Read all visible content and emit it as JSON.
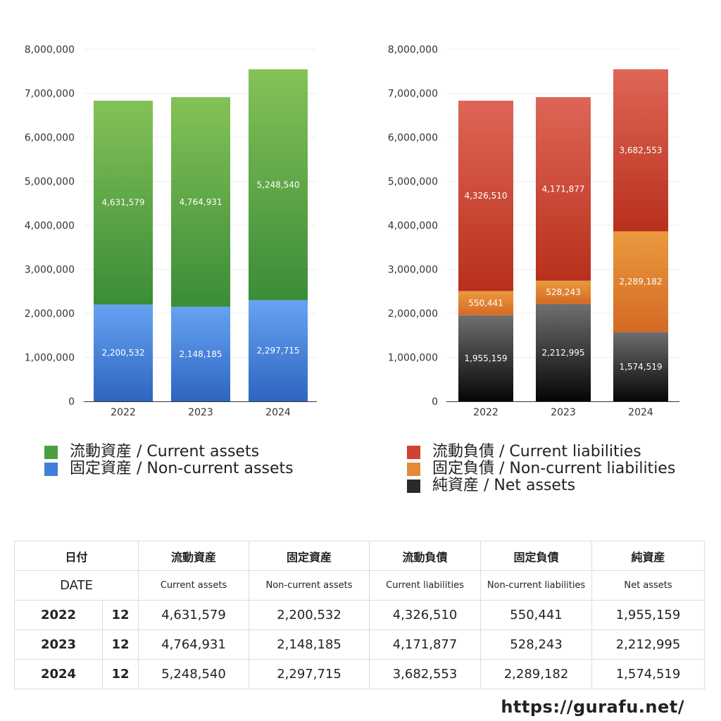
{
  "chart_data": [
    {
      "type": "bar",
      "stacked": true,
      "categories": [
        "2022",
        "2023",
        "2024"
      ],
      "ylim": [
        0,
        8000000
      ],
      "yticks": [
        "8,000,000",
        "7,000,000",
        "6,000,000",
        "5,000,000",
        "4,000,000",
        "3,000,000",
        "2,000,000",
        "1,000,000",
        "0"
      ],
      "grid": true,
      "legend_position": "bottom",
      "series": [
        {
          "name": "固定資産 / Non-current assets",
          "values": [
            2200532,
            2148185,
            2297715
          ],
          "labels": [
            "2,200,532",
            "2,148,185",
            "2,297,715"
          ],
          "color_top": "#66a3f2",
          "color_bottom": "#2e65c0"
        },
        {
          "name": "流動資産 / Current assets",
          "values": [
            4631579,
            4764931,
            5248540
          ],
          "labels": [
            "4,631,579",
            "4,764,931",
            "5,248,540"
          ],
          "color_top": "#84c257",
          "color_bottom": "#3b8c38"
        }
      ]
    },
    {
      "type": "bar",
      "stacked": true,
      "categories": [
        "2022",
        "2023",
        "2024"
      ],
      "ylim": [
        0,
        8000000
      ],
      "yticks": [
        "8,000,000",
        "7,000,000",
        "6,000,000",
        "5,000,000",
        "4,000,000",
        "3,000,000",
        "2,000,000",
        "1,000,000",
        "0"
      ],
      "grid": true,
      "legend_position": "bottom",
      "series": [
        {
          "name": "純資産 / Net assets",
          "values": [
            1955159,
            2212995,
            1574519
          ],
          "labels": [
            "1,955,159",
            "2,212,995",
            "1,574,519"
          ],
          "color_top": "#6f6f6f",
          "color_bottom": "#050505"
        },
        {
          "name": "固定負債 / Non-current liabilities",
          "values": [
            550441,
            528243,
            2289182
          ],
          "labels": [
            "550,441",
            "528,243",
            "2,289,182"
          ],
          "color_top": "#ea9a3e",
          "color_bottom": "#d46a24"
        },
        {
          "name": "流動負債 / Current liabilities",
          "values": [
            4326510,
            4171877,
            3682553
          ],
          "labels": [
            "4,326,510",
            "4,171,877",
            "3,682,553"
          ],
          "color_top": "#de6657",
          "color_bottom": "#b8301c"
        }
      ]
    }
  ],
  "legend_left": [
    {
      "label": "流動資産 / Current assets",
      "color": "#4c9f3f"
    },
    {
      "label": "固定資産 / Non-current assets",
      "color": "#3f7fd8"
    }
  ],
  "legend_right": [
    {
      "label": "流動負債 / Current liabilities",
      "color": "#cf4130"
    },
    {
      "label": "固定負債 / Non-current liabilities",
      "color": "#e48a35"
    },
    {
      "label": "純資産 / Net assets",
      "color": "#2a2a2a"
    }
  ],
  "table": {
    "header_jp": {
      "date": "日付",
      "c1": "流動資産",
      "c2": "固定資産",
      "c3": "流動負債",
      "c4": "固定負債",
      "c5": "純資産"
    },
    "header_en": {
      "date": "DATE",
      "c1": "Current assets",
      "c2": "Non-current assets",
      "c3": "Current liabilities",
      "c4": "Non-current liabilities",
      "c5": "Net assets"
    },
    "rows": [
      {
        "year": "2022",
        "month": "12",
        "c1": "4,631,579",
        "c2": "2,200,532",
        "c3": "4,326,510",
        "c4": "550,441",
        "c5": "1,955,159"
      },
      {
        "year": "2023",
        "month": "12",
        "c1": "4,764,931",
        "c2": "2,148,185",
        "c3": "4,171,877",
        "c4": "528,243",
        "c5": "2,212,995"
      },
      {
        "year": "2024",
        "month": "12",
        "c1": "5,248,540",
        "c2": "2,297,715",
        "c3": "3,682,553",
        "c4": "2,289,182",
        "c5": "1,574,519"
      }
    ]
  },
  "site_url": "https://gurafu.net/"
}
